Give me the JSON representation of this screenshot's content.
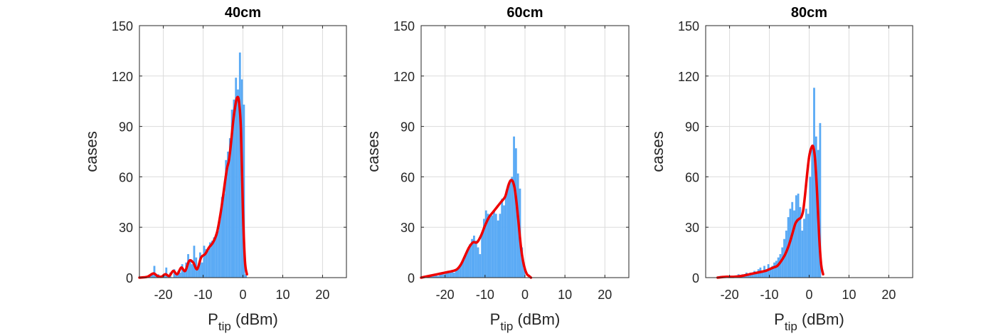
{
  "figure": {
    "xlabel_main": "P",
    "xlabel_sub": "tip",
    "xlabel_unit": " (dBm)",
    "ylabel": "cases",
    "colors": {
      "hist": "#5aaaf5",
      "fit": "#ee0000",
      "axis": "#262626",
      "grid": "#dcdcdc"
    }
  },
  "chart_data": [
    {
      "type": "bar",
      "title": "40cm",
      "xlabel": "P_tip (dBm)",
      "ylabel": "cases",
      "xlim": [
        -26,
        26
      ],
      "ylim": [
        0,
        150
      ],
      "xticks": [
        -20,
        -10,
        0,
        10,
        20
      ],
      "yticks": [
        0,
        30,
        60,
        90,
        120,
        150
      ],
      "grid": true,
      "series": [
        {
          "kind": "histogram",
          "bin_width": 0.5,
          "x": [
            -25,
            -24.5,
            -24,
            -23.5,
            -23,
            -22.5,
            -22,
            -21.5,
            -21,
            -20.5,
            -20,
            -19.5,
            -19,
            -18.5,
            -18,
            -17.5,
            -17,
            -16.5,
            -16,
            -15.5,
            -15,
            -14.5,
            -14,
            -13.5,
            -13,
            -12.5,
            -12,
            -11.5,
            -11,
            -10.5,
            -10,
            -9.5,
            -9,
            -8.5,
            -8,
            -7.5,
            -7,
            -6.5,
            -6,
            -5.5,
            -5,
            -4.5,
            -4,
            -3.5,
            -3,
            -2.5,
            -2,
            -1.5,
            -1,
            -0.5,
            0,
            0.5
          ],
          "values": [
            0,
            0,
            1,
            1,
            2,
            7,
            1,
            2,
            1,
            0,
            2,
            6,
            1,
            3,
            0,
            5,
            3,
            4,
            3,
            8,
            4,
            9,
            14,
            11,
            8,
            19,
            12,
            6,
            15,
            9,
            19,
            17,
            16,
            21,
            22,
            24,
            25,
            28,
            35,
            48,
            50,
            70,
            75,
            83,
            100,
            106,
            119,
            112,
            134,
            118,
            103,
            2
          ]
        },
        {
          "kind": "fit",
          "x": [
            -26,
            -24,
            -22.5,
            -21.5,
            -20.5,
            -19.5,
            -18.5,
            -17.5,
            -16.5,
            -15.5,
            -14.5,
            -13.5,
            -12.5,
            -11.5,
            -10.5,
            -9.5,
            -8.5,
            -7.5,
            -6.5,
            -5.5,
            -4.5,
            -4,
            -3.5,
            -3,
            -2.5,
            -2,
            -1.5,
            -1,
            -0.5,
            0,
            0.5,
            1
          ],
          "values": [
            0,
            0.5,
            2.5,
            1,
            0.5,
            2,
            1,
            4,
            2,
            6,
            4,
            10,
            9,
            5,
            12,
            14,
            18,
            21,
            27,
            40,
            57,
            65,
            70,
            80,
            92,
            101,
            107,
            105,
            88,
            40,
            10,
            2
          ]
        }
      ]
    },
    {
      "type": "bar",
      "title": "60cm",
      "xlabel": "P_tip (dBm)",
      "ylabel": "cases",
      "xlim": [
        -26,
        26
      ],
      "ylim": [
        0,
        150
      ],
      "xticks": [
        -20,
        -10,
        0,
        10,
        20
      ],
      "yticks": [
        0,
        30,
        60,
        90,
        120,
        150
      ],
      "grid": true,
      "series": [
        {
          "kind": "histogram",
          "bin_width": 0.5,
          "x": [
            -26,
            -25.5,
            -25,
            -24.5,
            -24,
            -23.5,
            -23,
            -22.5,
            -22,
            -21.5,
            -21,
            -20.5,
            -20,
            -19.5,
            -19,
            -18.5,
            -18,
            -17.5,
            -17,
            -16.5,
            -16,
            -15.5,
            -15,
            -14.5,
            -14,
            -13.5,
            -13,
            -12.5,
            -12,
            -11.5,
            -11,
            -10.5,
            -10,
            -9.5,
            -9,
            -8.5,
            -8,
            -7.5,
            -7,
            -6.5,
            -6,
            -5.5,
            -5,
            -4.5,
            -4,
            -3.5,
            -3,
            -2.5,
            -2,
            -1.5,
            -1,
            -0.5,
            0
          ],
          "values": [
            0,
            0,
            1,
            1,
            1,
            1,
            1,
            2,
            1,
            3,
            3,
            2,
            3,
            4,
            3,
            4,
            3,
            5,
            6,
            7,
            9,
            11,
            14,
            17,
            20,
            23,
            25,
            22,
            18,
            14,
            26,
            35,
            40,
            38,
            36,
            37,
            40,
            38,
            34,
            38,
            47,
            43,
            50,
            55,
            58,
            60,
            84,
            77,
            62,
            53,
            18,
            8,
            0
          ]
        },
        {
          "kind": "fit",
          "x": [
            -26,
            -24,
            -22,
            -20,
            -18,
            -17,
            -16,
            -15,
            -14,
            -13,
            -12,
            -11,
            -10,
            -9,
            -8,
            -7,
            -6,
            -5,
            -4.5,
            -4,
            -3.5,
            -3,
            -2.5,
            -2,
            -1.5,
            -1,
            -0.5,
            0,
            0.5,
            1,
            1.5
          ],
          "values": [
            0,
            1,
            2,
            3,
            4,
            5,
            8,
            13,
            18,
            21,
            21,
            25,
            31,
            36,
            39,
            42,
            45,
            48,
            52,
            56,
            58,
            57,
            52,
            42,
            30,
            18,
            10,
            5,
            2,
            1,
            0
          ]
        }
      ]
    },
    {
      "type": "bar",
      "title": "80cm",
      "xlabel": "P_tip (dBm)",
      "ylabel": "cases",
      "xlim": [
        -26,
        26
      ],
      "ylim": [
        0,
        150
      ],
      "xticks": [
        -20,
        -10,
        0,
        10,
        20
      ],
      "yticks": [
        0,
        30,
        60,
        90,
        120,
        150
      ],
      "grid": true,
      "series": [
        {
          "kind": "histogram",
          "bin_width": 0.5,
          "x": [
            -23,
            -22.5,
            -22,
            -21.5,
            -21,
            -20.5,
            -20,
            -19.5,
            -19,
            -18.5,
            -18,
            -17.5,
            -17,
            -16.5,
            -16,
            -15.5,
            -15,
            -14.5,
            -14,
            -13.5,
            -13,
            -12.5,
            -12,
            -11.5,
            -11,
            -10.5,
            -10,
            -9.5,
            -9,
            -8.5,
            -8,
            -7.5,
            -7,
            -6.5,
            -6,
            -5.5,
            -5,
            -4.5,
            -4,
            -3.5,
            -3,
            -2.5,
            -2,
            -1.5,
            -1,
            -0.5,
            0,
            0.5,
            1,
            1.5,
            2,
            2.5
          ],
          "values": [
            0,
            1,
            0,
            1,
            0,
            1,
            1,
            1,
            1,
            1,
            2,
            1,
            2,
            2,
            3,
            2,
            3,
            3,
            4,
            3,
            5,
            6,
            4,
            7,
            5,
            8,
            6,
            7,
            9,
            10,
            12,
            14,
            18,
            23,
            28,
            36,
            41,
            45,
            40,
            49,
            50,
            42,
            28,
            35,
            41,
            38,
            60,
            78,
            113,
            84,
            76,
            92
          ]
        },
        {
          "kind": "fit",
          "x": [
            -23,
            -21,
            -19,
            -17,
            -15,
            -13,
            -11,
            -10,
            -9,
            -8,
            -7,
            -6,
            -5,
            -4,
            -3.5,
            -3,
            -2.5,
            -2,
            -1.5,
            -1,
            -0.5,
            0,
            0.5,
            1,
            1.5,
            2,
            2.5,
            3,
            3.5
          ],
          "values": [
            0,
            0.5,
            0.5,
            1,
            2,
            3,
            4,
            5,
            6,
            7,
            10,
            14,
            20,
            28,
            32,
            34,
            35,
            36,
            40,
            50,
            62,
            72,
            77,
            78,
            70,
            50,
            25,
            8,
            2
          ]
        }
      ]
    }
  ]
}
